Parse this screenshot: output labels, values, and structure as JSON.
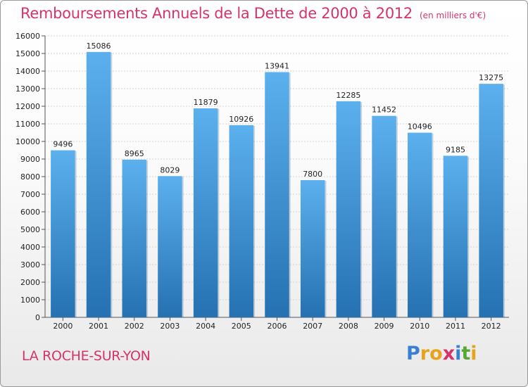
{
  "title": "Remboursements Annuels de la Dette de 2000 à 2012",
  "unit_note": "(en milliers d'€)",
  "city": "LA ROCHE-SUR-YON",
  "logo": {
    "letters": [
      "P",
      "r",
      "o",
      "x",
      "i",
      "t",
      "i"
    ],
    "colors": [
      "#3b7fd4",
      "#e8a31c",
      "#e8a31c",
      "#d6336c",
      "#3b7fd4",
      "#55a832",
      "#e8a31c"
    ]
  },
  "colors": {
    "title": "#d6336c",
    "bar_top": "#5cb0ee",
    "bar_bottom": "#2571b2"
  },
  "chart_data": {
    "type": "bar",
    "categories": [
      "2000",
      "2001",
      "2002",
      "2003",
      "2004",
      "2005",
      "2006",
      "2007",
      "2008",
      "2009",
      "2010",
      "2011",
      "2012"
    ],
    "values": [
      9496,
      15086,
      8965,
      8029,
      11879,
      10926,
      13941,
      7800,
      12285,
      11452,
      10496,
      9185,
      13275
    ],
    "ylim": [
      0,
      16000
    ],
    "yticks": [
      0,
      1000,
      2000,
      3000,
      4000,
      5000,
      6000,
      7000,
      8000,
      9000,
      10000,
      11000,
      12000,
      13000,
      14000,
      15000,
      16000
    ],
    "grid": true,
    "legend": "none"
  }
}
